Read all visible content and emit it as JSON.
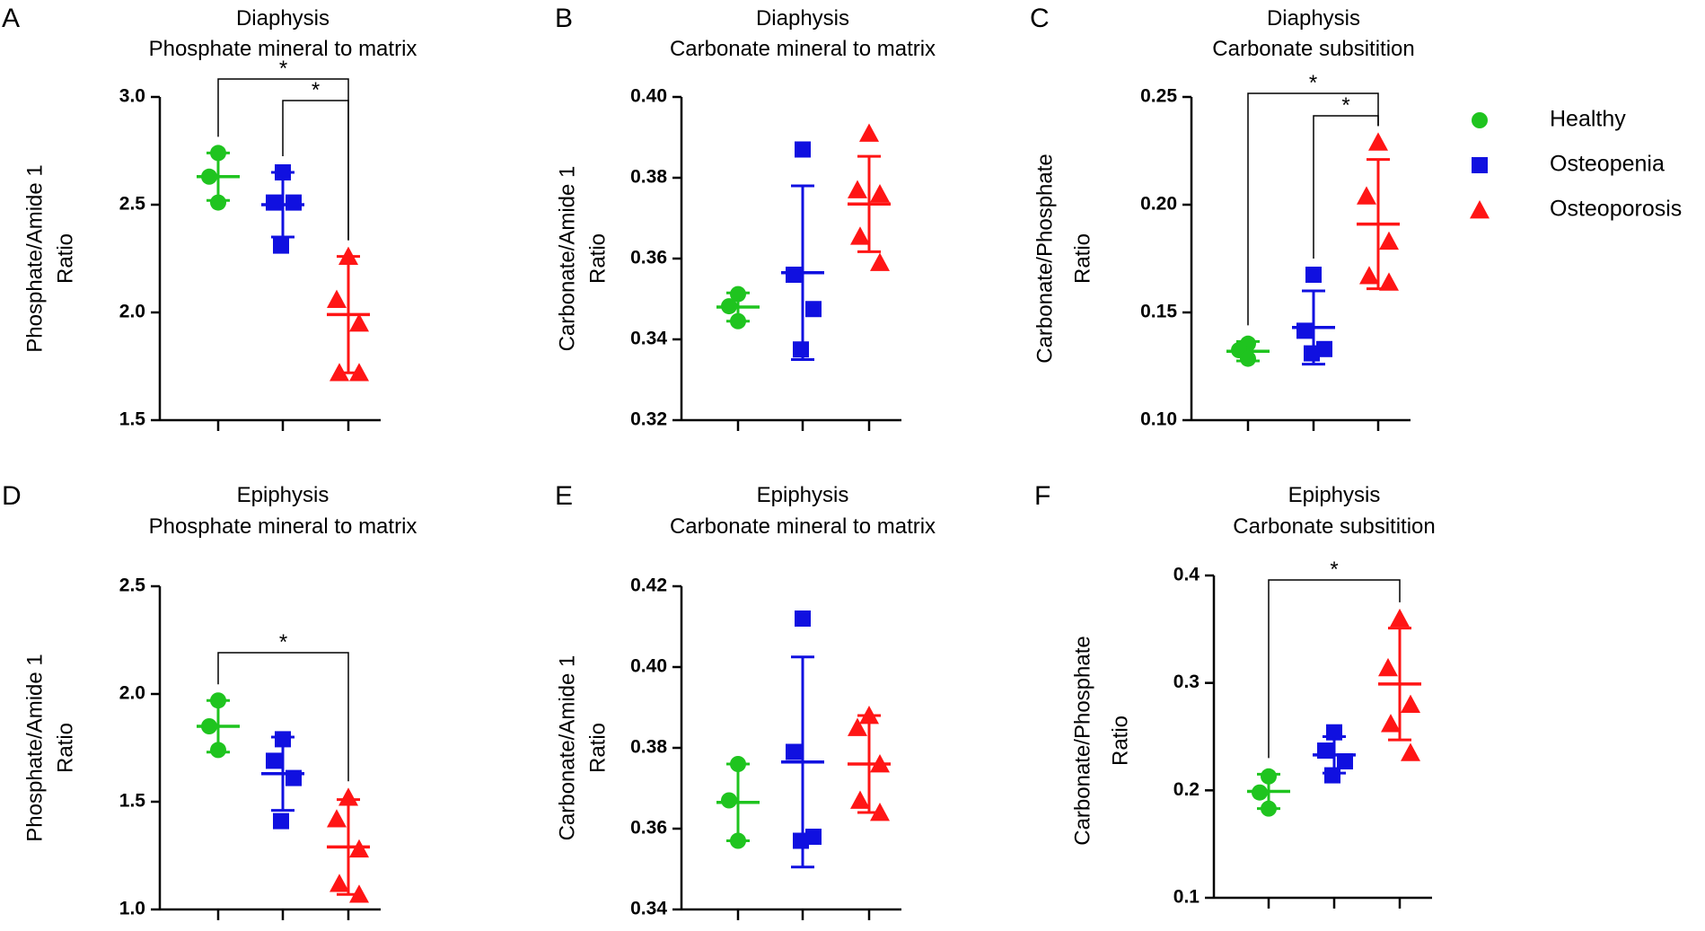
{
  "figure": {
    "legend": [
      {
        "label": "Healthy",
        "color": "#1fc41f",
        "marker": "circle"
      },
      {
        "label": "Osteopenia",
        "color": "#1010e0",
        "marker": "square"
      },
      {
        "label": "Osteoporosis",
        "color": "#ff1515",
        "marker": "triangle"
      }
    ]
  },
  "chart_data": [
    {
      "type": "scatter",
      "panel": "A",
      "title": [
        "Diaphysis",
        "Phosphate mineral to matrix"
      ],
      "ylabel": [
        "Phosphate/Amide 1",
        "Ratio"
      ],
      "ylim": [
        1.5,
        3.0
      ],
      "yticks": [
        1.5,
        2.0,
        2.5,
        3.0
      ],
      "ytick_labels": [
        "1.5",
        "2.0",
        "2.5",
        "3.0"
      ],
      "groups": [
        {
          "name": "Healthy",
          "points": [
            2.74,
            2.63,
            2.51
          ],
          "mean": 2.63,
          "sd": 0.11
        },
        {
          "name": "Osteopenia",
          "points": [
            2.65,
            2.51,
            2.51,
            2.31
          ],
          "mean": 2.5,
          "sd": 0.15
        },
        {
          "name": "Osteoporosis",
          "points": [
            2.26,
            2.06,
            1.95,
            1.72,
            1.72
          ],
          "mean": 1.99,
          "sd": 0.27
        }
      ],
      "significance": [
        {
          "from": 0,
          "to": 2,
          "label": "*",
          "level": 0
        },
        {
          "from": 1,
          "to": 2,
          "label": "*",
          "level": 1
        }
      ]
    },
    {
      "type": "scatter",
      "panel": "B",
      "title": [
        "Diaphysis",
        "Carbonate mineral to matrix"
      ],
      "ylabel": [
        "Carbonate/Amide 1",
        "Ratio"
      ],
      "ylim": [
        0.32,
        0.4
      ],
      "yticks": [
        0.32,
        0.34,
        0.36,
        0.38,
        0.4
      ],
      "ytick_labels": [
        "0.32",
        "0.34",
        "0.36",
        "0.38",
        "0.40"
      ],
      "groups": [
        {
          "name": "Healthy",
          "points": [
            0.3512,
            0.3482,
            0.3445
          ],
          "mean": 0.348,
          "sd": 0.0035
        },
        {
          "name": "Osteopenia",
          "points": [
            0.387,
            0.356,
            0.3475,
            0.3375
          ],
          "mean": 0.3565,
          "sd": 0.0215
        },
        {
          "name": "Osteoporosis",
          "points": [
            0.391,
            0.377,
            0.376,
            0.3655,
            0.359
          ],
          "mean": 0.3735,
          "sd": 0.0118
        }
      ],
      "significance": []
    },
    {
      "type": "scatter",
      "panel": "C",
      "title": [
        "Diaphysis",
        "Carbonate subsitition"
      ],
      "ylabel": [
        "Carbonate/Phosphate",
        "Ratio"
      ],
      "ylim": [
        0.1,
        0.25
      ],
      "yticks": [
        0.1,
        0.15,
        0.2,
        0.25
      ],
      "ytick_labels": [
        "0.10",
        "0.15",
        "0.20",
        "0.25"
      ],
      "groups": [
        {
          "name": "Healthy",
          "points": [
            0.1355,
            0.1325,
            0.1285
          ],
          "mean": 0.132,
          "sd": 0.0045
        },
        {
          "name": "Osteopenia",
          "points": [
            0.1675,
            0.1415,
            0.133,
            0.131
          ],
          "mean": 0.143,
          "sd": 0.017
        },
        {
          "name": "Osteoporosis",
          "points": [
            0.229,
            0.204,
            0.183,
            0.167,
            0.164
          ],
          "mean": 0.191,
          "sd": 0.03
        }
      ],
      "significance": [
        {
          "from": 0,
          "to": 2,
          "label": "*",
          "level": 0
        },
        {
          "from": 1,
          "to": 2,
          "label": "*",
          "level": 1
        }
      ]
    },
    {
      "type": "scatter",
      "panel": "D",
      "title": [
        "Epiphysis",
        "Phosphate mineral to matrix"
      ],
      "ylabel": [
        "Phosphate/Amide 1",
        "Ratio"
      ],
      "ylim": [
        1.0,
        2.5
      ],
      "yticks": [
        1.0,
        1.5,
        2.0,
        2.5
      ],
      "ytick_labels": [
        "1.0",
        "1.5",
        "2.0",
        "2.5"
      ],
      "groups": [
        {
          "name": "Healthy",
          "points": [
            1.97,
            1.85,
            1.74
          ],
          "mean": 1.85,
          "sd": 0.12
        },
        {
          "name": "Osteopenia",
          "points": [
            1.79,
            1.69,
            1.61,
            1.41
          ],
          "mean": 1.63,
          "sd": 0.17
        },
        {
          "name": "Osteoporosis",
          "points": [
            1.52,
            1.42,
            1.28,
            1.12,
            1.07
          ],
          "mean": 1.29,
          "sd": 0.22
        }
      ],
      "significance": [
        {
          "from": 0,
          "to": 2,
          "label": "*",
          "level": 0
        }
      ]
    },
    {
      "type": "scatter",
      "panel": "E",
      "title": [
        "Epiphysis",
        "Carbonate mineral to matrix"
      ],
      "ylabel": [
        "Carbonate/Amide 1",
        "Ratio"
      ],
      "ylim": [
        0.34,
        0.42
      ],
      "yticks": [
        0.34,
        0.36,
        0.38,
        0.4,
        0.42
      ],
      "ytick_labels": [
        "0.34",
        "0.36",
        "0.38",
        "0.40",
        "0.42"
      ],
      "groups": [
        {
          "name": "Healthy",
          "points": [
            0.376,
            0.367,
            0.357
          ],
          "mean": 0.3665,
          "sd": 0.0095
        },
        {
          "name": "Osteopenia",
          "points": [
            0.412,
            0.379,
            0.358,
            0.357
          ],
          "mean": 0.3765,
          "sd": 0.026
        },
        {
          "name": "Osteoporosis",
          "points": [
            0.388,
            0.385,
            0.376,
            0.367,
            0.364
          ],
          "mean": 0.376,
          "sd": 0.012
        }
      ],
      "significance": []
    },
    {
      "type": "scatter",
      "panel": "F",
      "title": [
        "Epiphysis",
        "Carbonate subsitition"
      ],
      "ylabel": [
        "Carbonate/Phosphate",
        "Ratio"
      ],
      "ylim": [
        0.1,
        0.4
      ],
      "yticks": [
        0.1,
        0.2,
        0.3,
        0.4
      ],
      "ytick_labels": [
        "0.1",
        "0.2",
        "0.3",
        "0.4"
      ],
      "groups": [
        {
          "name": "Healthy",
          "points": [
            0.213,
            0.198,
            0.183
          ],
          "mean": 0.199,
          "sd": 0.016
        },
        {
          "name": "Osteopenia",
          "points": [
            0.254,
            0.237,
            0.227,
            0.214
          ],
          "mean": 0.233,
          "sd": 0.017
        },
        {
          "name": "Osteoporosis",
          "points": [
            0.36,
            0.314,
            0.28,
            0.262,
            0.235
          ],
          "mean": 0.299,
          "sd": 0.052
        }
      ],
      "significance": [
        {
          "from": 0,
          "to": 2,
          "label": "*",
          "level": 0
        }
      ]
    }
  ]
}
